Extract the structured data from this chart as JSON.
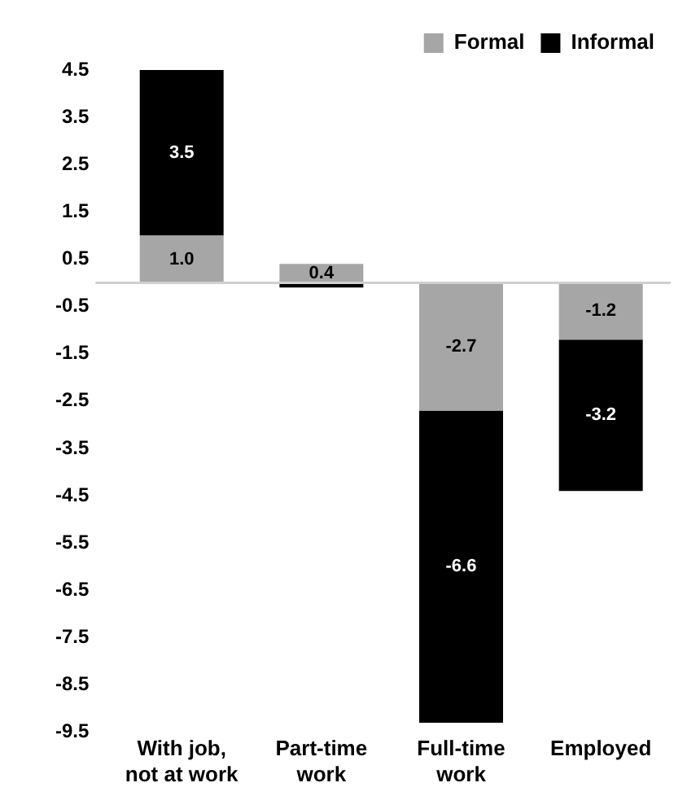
{
  "chart_data": {
    "type": "bar",
    "stacked": true,
    "categories": [
      "With job, not at work",
      "Part-time work",
      "Full-time work",
      "Employed"
    ],
    "series": [
      {
        "name": "Formal",
        "color": "#a6a6a6",
        "values": [
          1.0,
          0.4,
          -2.7,
          -1.2
        ],
        "value_labels": [
          "1.0",
          "0.4",
          "-2.7",
          "-1.2"
        ]
      },
      {
        "name": "Informal",
        "color": "#000000",
        "values": [
          3.5,
          -0.1,
          -6.6,
          -3.2
        ],
        "value_labels": [
          "3.5",
          null,
          "-6.6",
          "-3.2"
        ]
      }
    ],
    "ylim": [
      -9.5,
      4.5
    ],
    "yticks": [
      4.5,
      3.5,
      2.5,
      1.5,
      0.5,
      -0.5,
      -1.5,
      -2.5,
      -3.5,
      -4.5,
      -5.5,
      -6.5,
      -7.5,
      -8.5,
      -9.5
    ],
    "grid": false,
    "legend": "top right"
  }
}
